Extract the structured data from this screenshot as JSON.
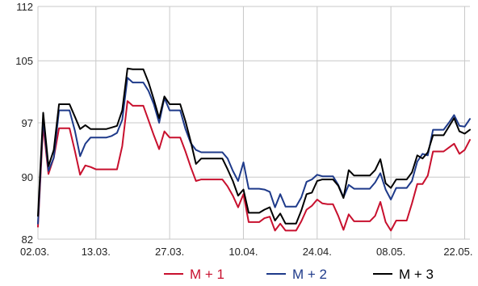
{
  "chart_data": {
    "type": "line",
    "title": "",
    "xlabel": "",
    "ylabel": "",
    "ylim": [
      82,
      112
    ],
    "yticks": [
      82,
      90,
      97,
      105,
      112
    ],
    "xticks": [
      {
        "label": "02.03.",
        "index": 0
      },
      {
        "label": "13.03.",
        "index": 11
      },
      {
        "label": "27.03.",
        "index": 25
      },
      {
        "label": "10.04.",
        "index": 39
      },
      {
        "label": "24.04.",
        "index": 53
      },
      {
        "label": "08.05.",
        "index": 67
      },
      {
        "label": "22.05.",
        "index": 81
      }
    ],
    "grid": true,
    "legend_position": "bottom",
    "x_start": "02.03.",
    "series": [
      {
        "name": "M + 1",
        "color": "#c8102e",
        "values": [
          83.6,
          96.7,
          90.4,
          92.5,
          96.3,
          96.3,
          96.3,
          93.4,
          90.3,
          91.5,
          91.3,
          91.0,
          91.0,
          91.0,
          91.0,
          91.0,
          94.0,
          99.8,
          99.2,
          99.2,
          99.2,
          97.3,
          95.4,
          93.6,
          95.9,
          95.1,
          95.1,
          95.1,
          93.3,
          91.3,
          89.5,
          89.7,
          89.7,
          89.7,
          89.7,
          89.7,
          88.8,
          87.6,
          86.1,
          87.8,
          84.2,
          84.2,
          84.2,
          84.7,
          84.9,
          83.1,
          84.0,
          83.1,
          83.1,
          83.1,
          84.3,
          85.8,
          86.3,
          87.1,
          86.6,
          86.5,
          86.5,
          85.0,
          83.2,
          85.2,
          84.3,
          84.3,
          84.3,
          84.3,
          85.0,
          86.8,
          84.2,
          83.1,
          84.4,
          84.4,
          84.4,
          86.6,
          89.1,
          89.1,
          90.2,
          93.3,
          93.3,
          93.3,
          93.8,
          94.3,
          93.0,
          93.5,
          94.8
        ]
      },
      {
        "name": "M + 2",
        "color": "#1e3a8a",
        "values": [
          84.0,
          97.6,
          90.8,
          92.5,
          98.6,
          98.6,
          98.6,
          96.0,
          92.7,
          94.3,
          95.1,
          95.1,
          95.1,
          95.1,
          95.3,
          95.7,
          97.4,
          102.8,
          102.2,
          102.2,
          102.2,
          101.1,
          99.4,
          97.0,
          100.2,
          98.6,
          98.6,
          98.6,
          96.2,
          94.4,
          93.5,
          93.2,
          93.2,
          93.2,
          93.2,
          93.2,
          92.4,
          90.8,
          89.5,
          91.9,
          88.5,
          88.5,
          88.5,
          88.4,
          88.1,
          86.1,
          87.8,
          86.2,
          86.2,
          86.2,
          87.4,
          89.4,
          89.7,
          90.3,
          90.1,
          90.1,
          90.1,
          89.0,
          87.4,
          89.0,
          88.5,
          88.5,
          88.5,
          88.5,
          89.3,
          90.5,
          88.4,
          87.1,
          88.6,
          88.6,
          88.6,
          89.5,
          92.0,
          93.0,
          92.8,
          96.1,
          96.1,
          96.1,
          97.0,
          98.0,
          96.6,
          96.5,
          97.5
        ]
      },
      {
        "name": "M + 3",
        "color": "#000000",
        "values": [
          85.0,
          98.3,
          91.4,
          93.5,
          99.4,
          99.4,
          99.4,
          97.8,
          96.2,
          96.7,
          96.2,
          96.2,
          96.2,
          96.2,
          96.4,
          96.6,
          98.6,
          104.0,
          103.9,
          103.9,
          103.9,
          102.2,
          100.0,
          97.6,
          100.4,
          99.4,
          99.4,
          99.4,
          97.2,
          94.6,
          91.7,
          92.4,
          92.4,
          92.4,
          92.4,
          92.4,
          91.0,
          89.5,
          87.6,
          88.4,
          85.4,
          85.4,
          85.4,
          85.8,
          86.1,
          84.4,
          85.3,
          84.0,
          84.0,
          84.0,
          85.7,
          87.8,
          88.0,
          89.5,
          89.7,
          89.7,
          89.7,
          88.9,
          87.3,
          90.9,
          90.2,
          90.2,
          90.2,
          90.2,
          90.9,
          92.3,
          89.2,
          88.6,
          89.7,
          89.7,
          89.7,
          90.6,
          92.8,
          92.4,
          93.2,
          95.4,
          95.4,
          95.4,
          96.5,
          97.6,
          95.9,
          95.6,
          96.1
        ]
      }
    ]
  }
}
